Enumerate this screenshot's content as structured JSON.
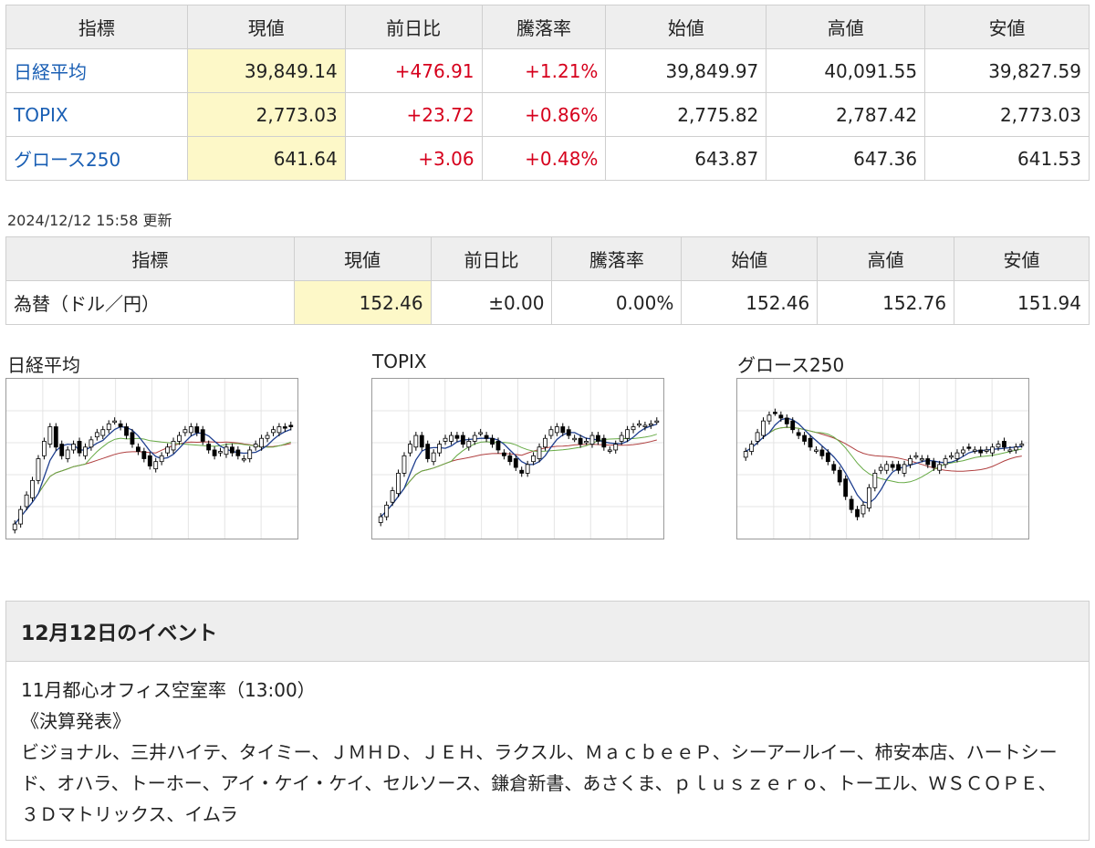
{
  "indices_table": {
    "headers": [
      "指標",
      "現値",
      "前日比",
      "騰落率",
      "始値",
      "高値",
      "安値"
    ],
    "rows": [
      {
        "name": "日経平均",
        "current": "39,849.14",
        "change": "+476.91",
        "rate": "+1.21%",
        "open": "39,849.97",
        "high": "40,091.55",
        "low": "39,827.59"
      },
      {
        "name": "TOPIX",
        "current": "2,773.03",
        "change": "+23.72",
        "rate": "+0.86%",
        "open": "2,775.82",
        "high": "2,787.42",
        "low": "2,773.03"
      },
      {
        "name": "グロース250",
        "current": "641.64",
        "change": "+3.06",
        "rate": "+0.48%",
        "open": "643.87",
        "high": "647.36",
        "low": "641.53"
      }
    ]
  },
  "updated": "2024/12/12 15:58 更新",
  "fx_table": {
    "headers": [
      "指標",
      "現値",
      "前日比",
      "騰落率",
      "始値",
      "高値",
      "安値"
    ],
    "row": {
      "name": "為替（ドル／円）",
      "current": "152.46",
      "change": "±0.00",
      "rate": "0.00%",
      "open": "152.46",
      "high": "152.76",
      "low": "151.94"
    }
  },
  "colors": {
    "positive": "#d6001c",
    "link": "#1a5fb4",
    "highlight": "#fdf8c8",
    "ma_short": "#1f3f8f",
    "ma_mid": "#66aa44",
    "ma_long": "#b04040"
  },
  "chart_data": [
    {
      "type": "candlestick",
      "title": "日経平均",
      "closes": [
        0.05,
        0.15,
        0.25,
        0.35,
        0.5,
        0.62,
        0.72,
        0.58,
        0.52,
        0.56,
        0.6,
        0.54,
        0.58,
        0.63,
        0.68,
        0.7,
        0.74,
        0.76,
        0.72,
        0.66,
        0.6,
        0.55,
        0.5,
        0.45,
        0.48,
        0.52,
        0.58,
        0.62,
        0.66,
        0.7,
        0.72,
        0.68,
        0.62,
        0.56,
        0.52,
        0.55,
        0.58,
        0.54,
        0.52,
        0.5,
        0.56,
        0.6,
        0.64,
        0.66,
        0.7,
        0.72,
        0.71,
        0.72
      ]
    },
    {
      "type": "candlestick",
      "title": "TOPIX",
      "closes": [
        0.1,
        0.18,
        0.28,
        0.4,
        0.52,
        0.6,
        0.66,
        0.58,
        0.5,
        0.54,
        0.6,
        0.64,
        0.66,
        0.64,
        0.6,
        0.62,
        0.66,
        0.68,
        0.64,
        0.6,
        0.56,
        0.52,
        0.48,
        0.44,
        0.4,
        0.46,
        0.52,
        0.58,
        0.64,
        0.7,
        0.72,
        0.68,
        0.66,
        0.64,
        0.6,
        0.62,
        0.66,
        0.62,
        0.58,
        0.56,
        0.6,
        0.66,
        0.7,
        0.72,
        0.74,
        0.73,
        0.74,
        0.76
      ]
    },
    {
      "type": "candlestick",
      "title": "グロース250",
      "closes": [
        0.55,
        0.6,
        0.68,
        0.76,
        0.8,
        0.82,
        0.78,
        0.74,
        0.7,
        0.66,
        0.62,
        0.58,
        0.56,
        0.52,
        0.48,
        0.42,
        0.34,
        0.24,
        0.15,
        0.1,
        0.18,
        0.3,
        0.4,
        0.44,
        0.46,
        0.44,
        0.42,
        0.46,
        0.5,
        0.52,
        0.5,
        0.46,
        0.44,
        0.46,
        0.5,
        0.52,
        0.54,
        0.56,
        0.58,
        0.56,
        0.54,
        0.56,
        0.58,
        0.6,
        0.58,
        0.56,
        0.58,
        0.6
      ]
    }
  ],
  "event": {
    "title": "12月12日のイベント",
    "lines": [
      "11月都心オフィス空室率（13:00）",
      "《決算発表》",
      "ビジョナル、三井ハイテ、タイミー、ＪＭＨＤ、ＪＥＨ、ラクスル、ＭａｃｂｅｅＰ、シーアールイー、柿安本店、ハートシード、オハラ、トーホー、アイ・ケイ・ケイ、セルソース、鎌倉新書、あさくま、ｐｌｕｓｚｅｒｏ、トーエル、ＷＳＣＯＰＥ、３Ｄマトリックス、イムラ"
    ]
  }
}
